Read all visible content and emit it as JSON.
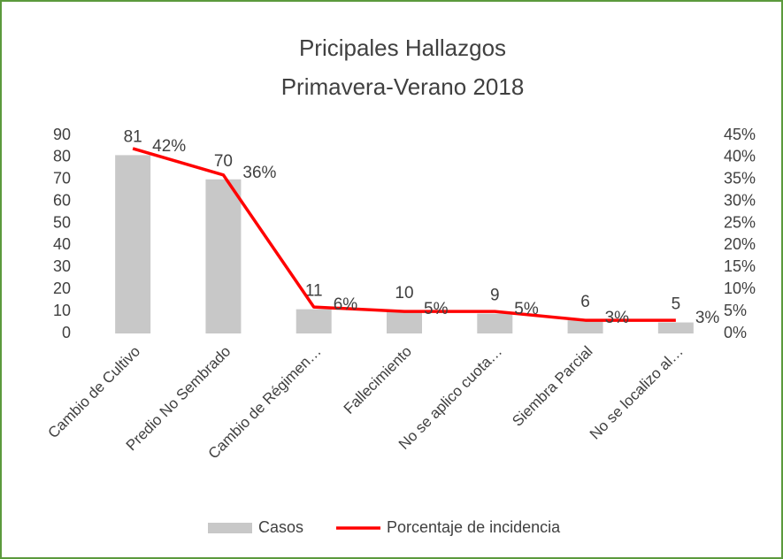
{
  "chart_data": {
    "type": "bar_line",
    "title": [
      "Pricipales Hallazgos",
      "Primavera-Verano 2018"
    ],
    "categories": [
      "Cambio de Cultivo",
      "Predio No Sembrado",
      "Cambio de Régimen…",
      "Fallecimiento",
      "No se aplico cuota…",
      "Siembra Parcial",
      "No se localizo al…"
    ],
    "series": [
      {
        "name": "Casos",
        "type": "bar",
        "color": "#c8c8c8",
        "values": [
          81,
          70,
          11,
          10,
          9,
          6,
          5
        ]
      },
      {
        "name": "Porcentaje de incidencia",
        "type": "line",
        "axis": "y2",
        "color": "#ff0000",
        "values": [
          42,
          36,
          6,
          5,
          5,
          3,
          3
        ],
        "value_labels": [
          "42%",
          "36%",
          "6%",
          "5%",
          "5%",
          "3%",
          "3%"
        ]
      }
    ],
    "ylim": [
      0,
      90
    ],
    "yticks": [
      0,
      10,
      20,
      30,
      40,
      50,
      60,
      70,
      80,
      90
    ],
    "y2lim": [
      0,
      45
    ],
    "y2ticks": [
      {
        "value": 0,
        "label": "0%"
      },
      {
        "value": 5,
        "label": "5%"
      },
      {
        "value": 10,
        "label": "10%"
      },
      {
        "value": 15,
        "label": "15%"
      },
      {
        "value": 20,
        "label": "20%"
      },
      {
        "value": 25,
        "label": "25%"
      },
      {
        "value": 30,
        "label": "30%"
      },
      {
        "value": 35,
        "label": "35%"
      },
      {
        "value": 40,
        "label": "40%"
      },
      {
        "value": 45,
        "label": "45%"
      }
    ],
    "legend": "bottom"
  }
}
